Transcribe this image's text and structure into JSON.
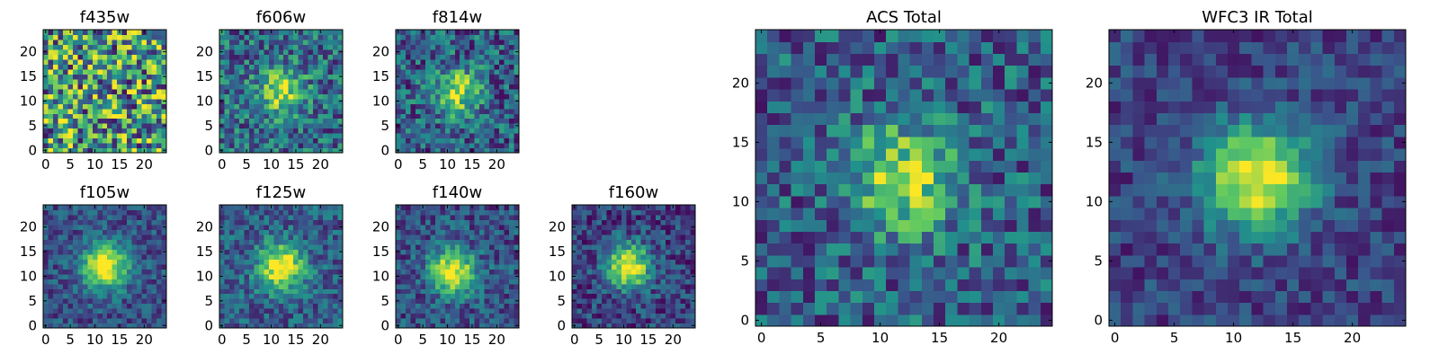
{
  "chart_data": [
    {
      "type": "heatmap",
      "title": "f435w",
      "xticks": [
        "0",
        "5",
        "10",
        "15",
        "20"
      ],
      "yticks": [
        "0",
        "5",
        "10",
        "15",
        "20"
      ],
      "xlim": [
        0,
        25
      ],
      "ylim": [
        0,
        25
      ],
      "peak": [
        12,
        12
      ],
      "source_amp": 0.0,
      "noise_amp": 1.0,
      "base": 0.55
    },
    {
      "type": "heatmap",
      "title": "f606w",
      "xticks": [
        "0",
        "5",
        "10",
        "15",
        "20"
      ],
      "yticks": [
        "0",
        "5",
        "10",
        "15",
        "20"
      ],
      "xlim": [
        0,
        25
      ],
      "ylim": [
        0,
        25
      ],
      "peak": [
        12,
        12
      ],
      "source_amp": 0.55,
      "noise_amp": 0.55,
      "base": 0.35
    },
    {
      "type": "heatmap",
      "title": "f814w",
      "xticks": [
        "0",
        "5",
        "10",
        "15",
        "20"
      ],
      "yticks": [
        "0",
        "5",
        "10",
        "15",
        "20"
      ],
      "xlim": [
        0,
        25
      ],
      "ylim": [
        0,
        25
      ],
      "peak": [
        12,
        12
      ],
      "source_amp": 0.6,
      "noise_amp": 0.55,
      "base": 0.3
    },
    {
      "type": "heatmap",
      "title": "f105w",
      "xticks": [
        "0",
        "5",
        "10",
        "15",
        "20"
      ],
      "yticks": [
        "0",
        "5",
        "10",
        "15",
        "20"
      ],
      "xlim": [
        0,
        25
      ],
      "ylim": [
        0,
        25
      ],
      "peak": [
        12,
        12
      ],
      "source_amp": 0.8,
      "noise_amp": 0.35,
      "base": 0.25
    },
    {
      "type": "heatmap",
      "title": "f125w",
      "xticks": [
        "0",
        "5",
        "10",
        "15",
        "20"
      ],
      "yticks": [
        "0",
        "5",
        "10",
        "15",
        "20"
      ],
      "xlim": [
        0,
        25
      ],
      "ylim": [
        0,
        25
      ],
      "peak": [
        12,
        12
      ],
      "source_amp": 0.75,
      "noise_amp": 0.4,
      "base": 0.3
    },
    {
      "type": "heatmap",
      "title": "f140w",
      "xticks": [
        "0",
        "5",
        "10",
        "15",
        "20"
      ],
      "yticks": [
        "0",
        "5",
        "10",
        "15",
        "20"
      ],
      "xlim": [
        0,
        25
      ],
      "ylim": [
        0,
        25
      ],
      "peak": [
        11,
        11
      ],
      "source_amp": 0.75,
      "noise_amp": 0.4,
      "base": 0.25
    },
    {
      "type": "heatmap",
      "title": "f160w",
      "xticks": [
        "0",
        "5",
        "10",
        "15",
        "20"
      ],
      "yticks": [
        "0",
        "5",
        "10",
        "15",
        "20"
      ],
      "xlim": [
        0,
        25
      ],
      "ylim": [
        0,
        25
      ],
      "peak": [
        11,
        12
      ],
      "source_amp": 0.8,
      "noise_amp": 0.4,
      "base": 0.2
    },
    {
      "type": "heatmap",
      "title": "ACS Total",
      "xticks": [
        "0",
        "5",
        "10",
        "15",
        "20"
      ],
      "yticks": [
        "0",
        "5",
        "10",
        "15",
        "20"
      ],
      "xlim": [
        0,
        25
      ],
      "ylim": [
        0,
        25
      ],
      "peak": [
        12,
        12
      ],
      "source_amp": 0.55,
      "noise_amp": 0.5,
      "base": 0.3
    },
    {
      "type": "heatmap",
      "title": "WFC3 IR Total",
      "xticks": [
        "0",
        "5",
        "10",
        "15",
        "20"
      ],
      "yticks": [
        "0",
        "5",
        "10",
        "15",
        "20"
      ],
      "xlim": [
        0,
        25
      ],
      "ylim": [
        0,
        25
      ],
      "peak": [
        12,
        12
      ],
      "source_amp": 0.8,
      "noise_amp": 0.3,
      "base": 0.2
    }
  ],
  "colormap": [
    "#440154",
    "#3b528b",
    "#21918c",
    "#5ec962",
    "#fde725"
  ]
}
